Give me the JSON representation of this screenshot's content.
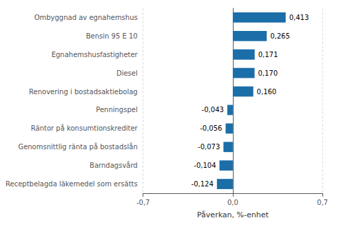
{
  "chart_data": {
    "type": "bar",
    "orientation": "horizontal",
    "xlabel": "Påverkan, %-enhet",
    "categories": [
      "Receptbelagda läkemedel som ersätts",
      "Barndagsvård",
      "Genomsnittlig ränta på bostadslån",
      "Räntor på konsumtionskrediter",
      "Penningspel",
      "Renovering i bostadsaktiebolag",
      "Diesel",
      "Egnahemshusfastigheter",
      "Bensin 95 E 10",
      "Ombyggnad av egnahemshus"
    ],
    "values": [
      -0.124,
      -0.104,
      -0.073,
      -0.056,
      -0.043,
      0.16,
      0.17,
      0.171,
      0.265,
      0.413
    ],
    "value_labels": [
      "-0,124",
      "-0,104",
      "-0,073",
      "-0,056",
      "-0,043",
      "0,160",
      "0,170",
      "0,171",
      "0,265",
      "0,413"
    ],
    "data_labels": true,
    "color": "#1B6EA8",
    "xlim": [
      -0.7,
      0.7
    ],
    "xticks": [
      {
        "value": -0.7,
        "label": "-0,7"
      },
      {
        "value": 0.0,
        "label": "0,0"
      },
      {
        "value": 0.7,
        "label": "0,7"
      }
    ],
    "grid": true
  }
}
